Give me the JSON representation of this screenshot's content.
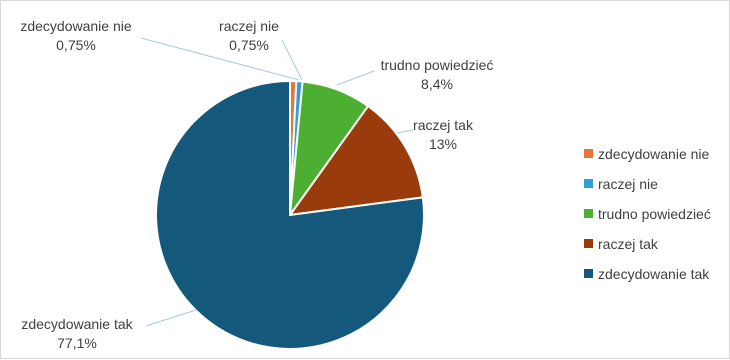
{
  "chart_data": {
    "type": "pie",
    "categories": [
      "zdecydowanie nie",
      "raczej nie",
      "trudno powiedzieć",
      "raczej tak",
      "zdecydowanie tak"
    ],
    "values": [
      0.75,
      0.75,
      8.4,
      13,
      77.1
    ],
    "value_labels": [
      "0,75%",
      "0,75%",
      "8,4%",
      "13%",
      "77,1%"
    ],
    "colors": [
      "#e8743b",
      "#2f9fd8",
      "#4caf32",
      "#9a3b0c",
      "#14587c"
    ],
    "start_angle_deg": 0,
    "direction": "clockwise",
    "legend": {
      "position": "right",
      "entries": [
        "zdecydowanie nie",
        "raczej nie",
        "trudno powiedzieć",
        "raczej tak",
        "zdecydowanie tak"
      ]
    }
  }
}
